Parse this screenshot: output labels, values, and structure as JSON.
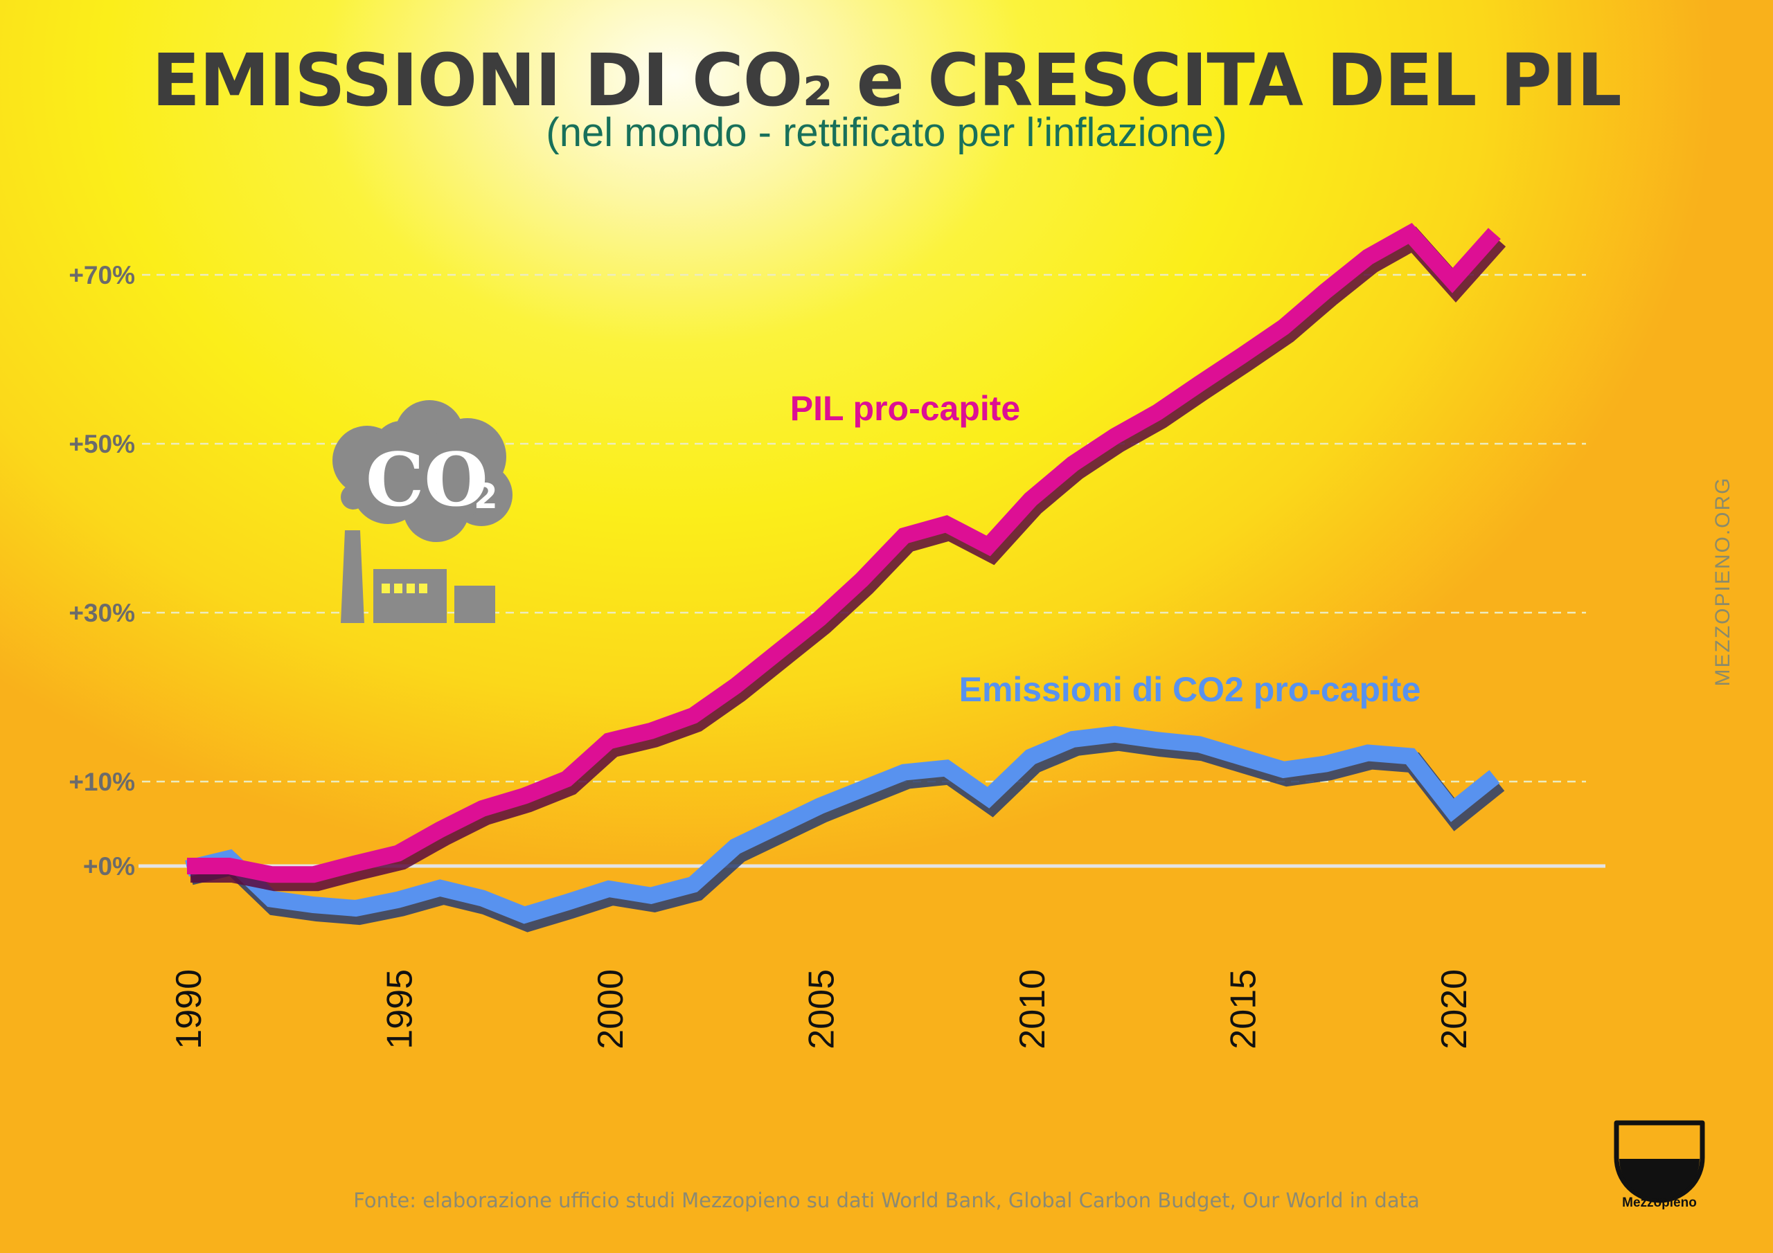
{
  "header": {
    "title": "EMISSIONI DI CO₂ e CRESCITA DEL PIL",
    "subtitle": "(nel mondo - rettificato per l’inflazione)"
  },
  "icon": {
    "name": "co2-factory-icon",
    "text": "CO₂"
  },
  "side_text": "MEZZOPIENO.ORG",
  "source": "Fonte: elaborazione ufficio studi Mezzopieno su dati World Bank, Global Carbon Budget, Our World in data",
  "brand": {
    "name": "Mezzopieno"
  },
  "colors": {
    "pil": "#dd0f94",
    "pil_shadow": "#5a0a3d",
    "co2": "#5892ef",
    "co2_shadow": "#283c6e",
    "axis_text": "#6b6b6b",
    "grid": "#ececbf"
  },
  "chart_data": {
    "type": "line",
    "title": "EMISSIONI DI CO₂ e CRESCITA DEL PIL",
    "subtitle": "(nel mondo - rettificato per l’inflazione)",
    "x": [
      1990,
      1991,
      1992,
      1993,
      1994,
      1995,
      1996,
      1997,
      1998,
      1999,
      2000,
      2001,
      2002,
      2003,
      2004,
      2005,
      2006,
      2007,
      2008,
      2009,
      2010,
      2011,
      2012,
      2013,
      2014,
      2015,
      2016,
      2017,
      2018,
      2019,
      2020,
      2021
    ],
    "x_ticks": [
      "1990",
      "1995",
      "2000",
      "2005",
      "2010",
      "2015",
      "2020"
    ],
    "y_ticks": [
      "+70%",
      "+50%",
      "+30%",
      "+10%",
      "+0%"
    ],
    "y_tick_values": [
      70,
      50,
      30,
      10,
      0
    ],
    "grid": true,
    "series": [
      {
        "name": "PIL pro-capite",
        "values": [
          0,
          0,
          -1,
          -1,
          0.3,
          1.5,
          4.3,
          6.8,
          8.3,
          10.3,
          14.8,
          16,
          17.8,
          21.3,
          25.3,
          29.3,
          33.9,
          39.1,
          40.5,
          37.9,
          43.4,
          47.6,
          50.9,
          53.7,
          57.1,
          60.4,
          63.8,
          68.1,
          72.1,
          74.9,
          69.3,
          74.9
        ]
      },
      {
        "name": "Emissioni di CO2 pro-capite",
        "values": [
          -0.3,
          0.9,
          -3.9,
          -4.6,
          -5,
          -4,
          -2.6,
          -3.8,
          -5.8,
          -4.3,
          -2.7,
          -3.5,
          -2.2,
          2.3,
          4.7,
          7.1,
          9.1,
          11.1,
          11.6,
          8.1,
          12.9,
          15,
          15.6,
          14.9,
          14.4,
          12.9,
          11.4,
          12.1,
          13.4,
          13,
          6.6,
          10.6
        ]
      }
    ]
  }
}
